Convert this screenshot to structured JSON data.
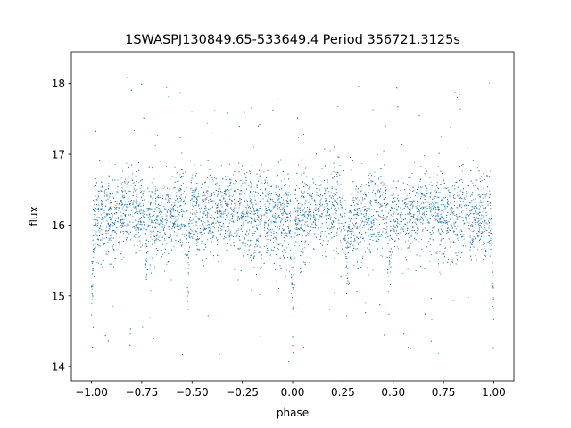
{
  "chart_data": {
    "type": "scatter",
    "title": "1SWASPJ130849.65-533649.4 Period 356721.3125s",
    "xlabel": "phase",
    "ylabel": "flux",
    "xlim": [
      -1.1,
      1.1
    ],
    "ylim": [
      13.8,
      18.45
    ],
    "xticks": [
      -1.0,
      -0.75,
      -0.5,
      -0.25,
      0.0,
      0.25,
      0.5,
      0.75,
      1.0
    ],
    "xtick_labels": [
      "−1.00",
      "−0.75",
      "−0.50",
      "−0.25",
      "0.00",
      "0.25",
      "0.50",
      "0.75",
      "1.00"
    ],
    "yticks": [
      14,
      15,
      16,
      17,
      18
    ],
    "ytick_labels": [
      "14",
      "15",
      "16",
      "17",
      "18"
    ],
    "grid": false,
    "legend": "none",
    "series": [
      {
        "color": "#1f77b4",
        "marker": "dot",
        "baseline_flux": 16.1,
        "scatter_sigma": 0.3,
        "phase_range": [
          -1.0,
          1.0
        ],
        "dips": [
          {
            "phase": -1.0,
            "depth": 1.2
          },
          {
            "phase": -0.73,
            "depth": 0.6
          },
          {
            "phase": -0.52,
            "depth": 0.8
          },
          {
            "phase": 0.0,
            "depth": 1.2
          },
          {
            "phase": 0.27,
            "depth": 0.6
          },
          {
            "phase": 0.48,
            "depth": 0.8
          },
          {
            "phase": 1.0,
            "depth": 1.2
          }
        ],
        "humps": [
          {
            "phase": -0.8,
            "height": 0.4
          },
          {
            "phase": -0.55,
            "height": 0.45
          },
          {
            "phase": -0.33,
            "height": 0.35
          },
          {
            "phase": 0.2,
            "height": 0.4
          },
          {
            "phase": 0.45,
            "height": 0.45
          },
          {
            "phase": 0.67,
            "height": 0.35
          }
        ]
      }
    ]
  }
}
